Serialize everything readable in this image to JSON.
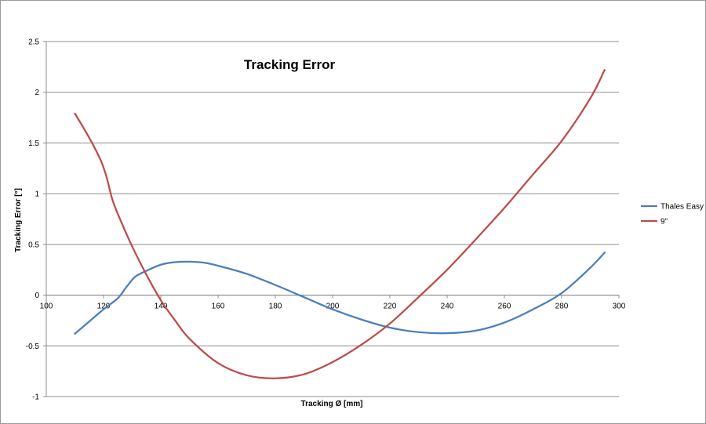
{
  "chart_data": {
    "type": "line",
    "title": "Tracking Error",
    "xlabel": "Tracking Ø [mm]",
    "ylabel": "Tracking Error [°]",
    "xlim": [
      100,
      300
    ],
    "ylim": [
      -1,
      2.5
    ],
    "xticks": [
      100,
      120,
      140,
      160,
      180,
      200,
      220,
      240,
      260,
      280,
      300
    ],
    "yticks": [
      -1,
      -0.5,
      0,
      0.5,
      1,
      1.5,
      2,
      2.5
    ],
    "ytick_labels": [
      "-1",
      "-0.5",
      "0",
      "0.5",
      "1",
      "1.5",
      "2",
      "2.5"
    ],
    "grid": "horizontal",
    "legend": "right",
    "series": [
      {
        "name": "Thales Easy",
        "color": "#4a7ebb",
        "x": [
          110,
          115,
          120,
          125,
          128,
          131,
          135,
          140,
          145,
          150,
          155,
          160,
          170,
          180,
          190,
          200,
          210,
          220,
          230,
          240,
          250,
          260,
          270,
          280,
          290,
          295
        ],
        "y": [
          -0.38,
          -0.26,
          -0.14,
          -0.03,
          0.08,
          0.18,
          0.24,
          0.3,
          0.325,
          0.33,
          0.32,
          0.29,
          0.21,
          0.1,
          -0.02,
          -0.14,
          -0.24,
          -0.32,
          -0.365,
          -0.375,
          -0.35,
          -0.27,
          -0.14,
          0.02,
          0.27,
          0.42
        ]
      },
      {
        "name": "9\"",
        "color": "#be4b48",
        "x": [
          110,
          113,
          116,
          119,
          121,
          123,
          125,
          130,
          135,
          140,
          145,
          150,
          160,
          170,
          180,
          190,
          200,
          210,
          220,
          230,
          240,
          250,
          260,
          270,
          280,
          290,
          295
        ],
        "y": [
          1.79,
          1.65,
          1.5,
          1.33,
          1.17,
          0.95,
          0.8,
          0.48,
          0.2,
          -0.05,
          -0.25,
          -0.43,
          -0.67,
          -0.79,
          -0.82,
          -0.78,
          -0.66,
          -0.49,
          -0.28,
          -0.02,
          0.25,
          0.55,
          0.86,
          1.19,
          1.52,
          1.94,
          2.22
        ]
      }
    ]
  }
}
